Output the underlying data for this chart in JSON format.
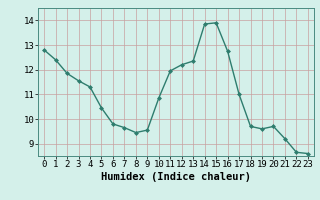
{
  "x": [
    0,
    1,
    2,
    3,
    4,
    5,
    6,
    7,
    8,
    9,
    10,
    11,
    12,
    13,
    14,
    15,
    16,
    17,
    18,
    19,
    20,
    21,
    22,
    23
  ],
  "y": [
    12.8,
    12.4,
    11.85,
    11.55,
    11.3,
    10.45,
    9.8,
    9.65,
    9.45,
    9.55,
    10.85,
    11.95,
    12.2,
    12.35,
    13.85,
    13.9,
    12.75,
    11.0,
    9.7,
    9.6,
    9.7,
    9.2,
    8.65,
    8.6
  ],
  "line_color": "#2e7d6e",
  "marker": "D",
  "marker_size": 2.0,
  "linewidth": 1.0,
  "bg_color": "#d4f0ea",
  "grid_color_v": "#c8a0a0",
  "grid_color_h": "#c8a0a0",
  "xlabel": "Humidex (Indice chaleur)",
  "xlabel_fontsize": 7.5,
  "tick_fontsize": 6.5,
  "xlim": [
    -0.5,
    23.5
  ],
  "ylim": [
    8.5,
    14.5
  ],
  "yticks": [
    9,
    10,
    11,
    12,
    13,
    14
  ],
  "xticks": [
    0,
    1,
    2,
    3,
    4,
    5,
    6,
    7,
    8,
    9,
    10,
    11,
    12,
    13,
    14,
    15,
    16,
    17,
    18,
    19,
    20,
    21,
    22,
    23
  ]
}
